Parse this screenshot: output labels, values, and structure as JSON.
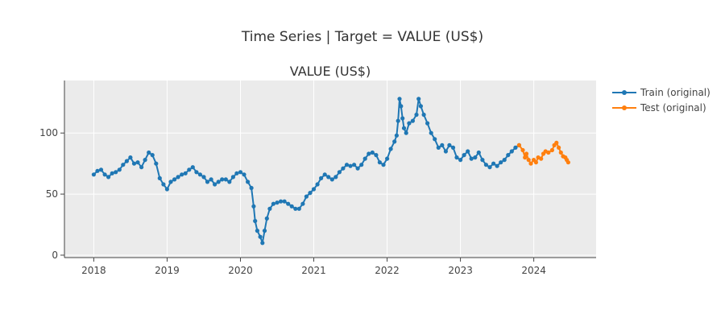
{
  "title": "Time Series | Target = VALUE (US$)",
  "chart_data": {
    "type": "line",
    "title": "VALUE (US$)",
    "xlabel": "",
    "ylabel": "",
    "xlim": [
      2017.6,
      2024.85
    ],
    "ylim": [
      -2,
      143
    ],
    "x_ticks": [
      {
        "value": 2018,
        "label": "2018"
      },
      {
        "value": 2019,
        "label": "2019"
      },
      {
        "value": 2020,
        "label": "2020"
      },
      {
        "value": 2021,
        "label": "2021"
      },
      {
        "value": 2022,
        "label": "2022"
      },
      {
        "value": 2023,
        "label": "2023"
      },
      {
        "value": 2024,
        "label": "2024"
      }
    ],
    "y_ticks": [
      {
        "value": 0,
        "label": "0"
      },
      {
        "value": 50,
        "label": "50"
      },
      {
        "value": 100,
        "label": "100"
      }
    ],
    "grid": true,
    "legend_position": "top-right",
    "series": [
      {
        "name": "Train (original)",
        "color": "#1f77b4",
        "points": [
          [
            2018.0,
            66
          ],
          [
            2018.05,
            69
          ],
          [
            2018.1,
            70
          ],
          [
            2018.15,
            66
          ],
          [
            2018.2,
            64
          ],
          [
            2018.25,
            67
          ],
          [
            2018.3,
            68
          ],
          [
            2018.35,
            70
          ],
          [
            2018.4,
            74
          ],
          [
            2018.45,
            77
          ],
          [
            2018.5,
            80
          ],
          [
            2018.55,
            75
          ],
          [
            2018.6,
            76
          ],
          [
            2018.65,
            72
          ],
          [
            2018.7,
            78
          ],
          [
            2018.75,
            84
          ],
          [
            2018.8,
            82
          ],
          [
            2018.85,
            75
          ],
          [
            2018.9,
            63
          ],
          [
            2018.95,
            58
          ],
          [
            2019.0,
            54
          ],
          [
            2019.05,
            60
          ],
          [
            2019.1,
            62
          ],
          [
            2019.15,
            64
          ],
          [
            2019.2,
            66
          ],
          [
            2019.25,
            67
          ],
          [
            2019.3,
            70
          ],
          [
            2019.35,
            72
          ],
          [
            2019.4,
            68
          ],
          [
            2019.45,
            66
          ],
          [
            2019.5,
            64
          ],
          [
            2019.55,
            60
          ],
          [
            2019.6,
            62
          ],
          [
            2019.65,
            58
          ],
          [
            2019.7,
            60
          ],
          [
            2019.75,
            62
          ],
          [
            2019.8,
            62
          ],
          [
            2019.85,
            60
          ],
          [
            2019.9,
            64
          ],
          [
            2019.95,
            67
          ],
          [
            2020.0,
            68
          ],
          [
            2020.05,
            66
          ],
          [
            2020.1,
            60
          ],
          [
            2020.15,
            55
          ],
          [
            2020.18,
            40
          ],
          [
            2020.2,
            28
          ],
          [
            2020.23,
            20
          ],
          [
            2020.27,
            15
          ],
          [
            2020.3,
            10
          ],
          [
            2020.33,
            20
          ],
          [
            2020.36,
            30
          ],
          [
            2020.4,
            38
          ],
          [
            2020.45,
            42
          ],
          [
            2020.5,
            43
          ],
          [
            2020.55,
            44
          ],
          [
            2020.6,
            44
          ],
          [
            2020.65,
            42
          ],
          [
            2020.7,
            40
          ],
          [
            2020.75,
            38
          ],
          [
            2020.8,
            38
          ],
          [
            2020.85,
            42
          ],
          [
            2020.9,
            48
          ],
          [
            2020.95,
            51
          ],
          [
            2021.0,
            54
          ],
          [
            2021.05,
            58
          ],
          [
            2021.1,
            63
          ],
          [
            2021.15,
            66
          ],
          [
            2021.2,
            64
          ],
          [
            2021.25,
            62
          ],
          [
            2021.3,
            64
          ],
          [
            2021.35,
            68
          ],
          [
            2021.4,
            71
          ],
          [
            2021.45,
            74
          ],
          [
            2021.5,
            73
          ],
          [
            2021.55,
            74
          ],
          [
            2021.6,
            71
          ],
          [
            2021.65,
            74
          ],
          [
            2021.7,
            79
          ],
          [
            2021.75,
            83
          ],
          [
            2021.8,
            84
          ],
          [
            2021.85,
            82
          ],
          [
            2021.9,
            76
          ],
          [
            2021.95,
            74
          ],
          [
            2022.0,
            79
          ],
          [
            2022.05,
            87
          ],
          [
            2022.1,
            93
          ],
          [
            2022.13,
            98
          ],
          [
            2022.15,
            110
          ],
          [
            2022.17,
            128
          ],
          [
            2022.19,
            122
          ],
          [
            2022.21,
            112
          ],
          [
            2022.23,
            104
          ],
          [
            2022.26,
            100
          ],
          [
            2022.3,
            108
          ],
          [
            2022.35,
            110
          ],
          [
            2022.4,
            115
          ],
          [
            2022.43,
            128
          ],
          [
            2022.46,
            122
          ],
          [
            2022.5,
            115
          ],
          [
            2022.55,
            108
          ],
          [
            2022.6,
            100
          ],
          [
            2022.65,
            95
          ],
          [
            2022.7,
            88
          ],
          [
            2022.75,
            90
          ],
          [
            2022.8,
            85
          ],
          [
            2022.85,
            90
          ],
          [
            2022.9,
            88
          ],
          [
            2022.95,
            80
          ],
          [
            2023.0,
            78
          ],
          [
            2023.05,
            82
          ],
          [
            2023.1,
            85
          ],
          [
            2023.15,
            79
          ],
          [
            2023.2,
            80
          ],
          [
            2023.25,
            84
          ],
          [
            2023.3,
            78
          ],
          [
            2023.35,
            74
          ],
          [
            2023.4,
            72
          ],
          [
            2023.45,
            75
          ],
          [
            2023.5,
            73
          ],
          [
            2023.55,
            76
          ],
          [
            2023.6,
            78
          ],
          [
            2023.65,
            82
          ],
          [
            2023.7,
            85
          ],
          [
            2023.75,
            88
          ],
          [
            2023.8,
            90
          ]
        ]
      },
      {
        "name": "Test (original)",
        "color": "#ff7f0e",
        "points": [
          [
            2023.8,
            90
          ],
          [
            2023.85,
            86
          ],
          [
            2023.88,
            80
          ],
          [
            2023.9,
            83
          ],
          [
            2023.93,
            78
          ],
          [
            2023.96,
            75
          ],
          [
            2024.0,
            78
          ],
          [
            2024.03,
            76
          ],
          [
            2024.06,
            80
          ],
          [
            2024.1,
            79
          ],
          [
            2024.13,
            83
          ],
          [
            2024.16,
            85
          ],
          [
            2024.2,
            84
          ],
          [
            2024.25,
            86
          ],
          [
            2024.28,
            90
          ],
          [
            2024.31,
            92
          ],
          [
            2024.34,
            88
          ],
          [
            2024.37,
            84
          ],
          [
            2024.4,
            81
          ],
          [
            2024.43,
            80
          ],
          [
            2024.45,
            78
          ],
          [
            2024.47,
            76
          ]
        ]
      }
    ]
  }
}
